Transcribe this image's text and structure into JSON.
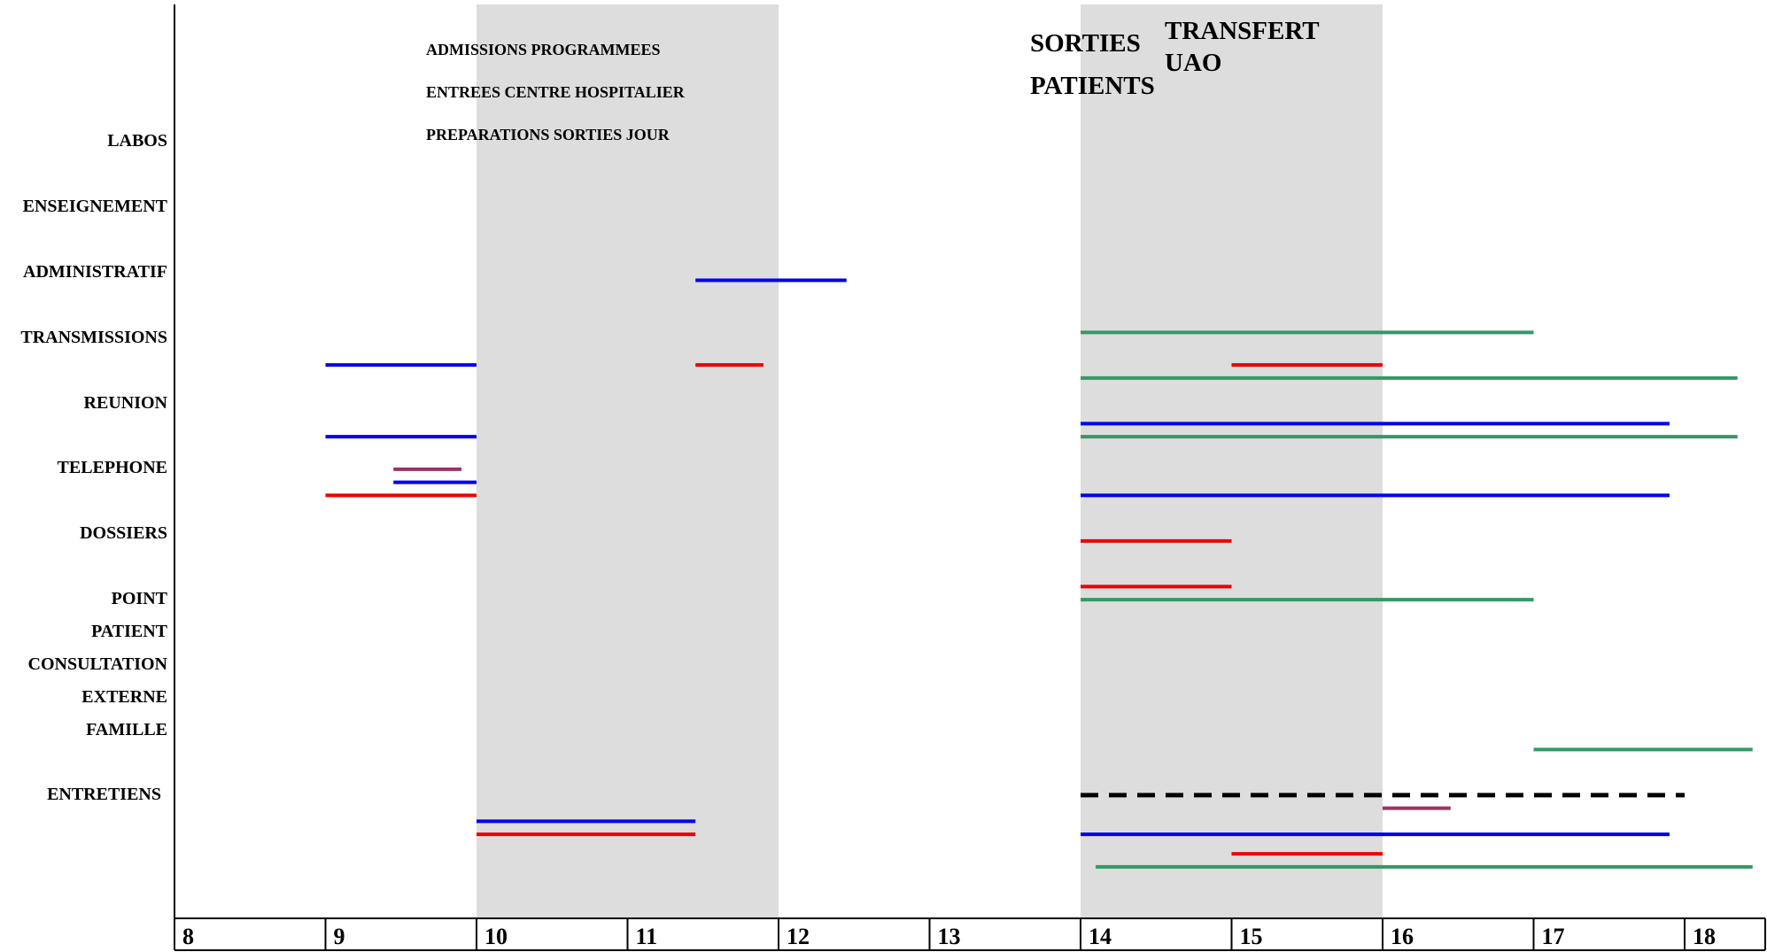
{
  "chart_data": {
    "type": "timeline",
    "x_ticks": [
      "8",
      "9",
      "10",
      "11",
      "12",
      "13",
      "14",
      "15",
      "16",
      "17",
      "18"
    ],
    "xlim": [
      8,
      19
    ],
    "shaded_periods": [
      [
        10,
        12
      ],
      [
        14,
        16
      ]
    ],
    "category_labels": [
      "LABOS",
      "ENSEIGNEMENT",
      "ADMINISTRATIF",
      "TRANSMISSIONS",
      "REUNION",
      "TELEPHONE",
      "DOSSIERS",
      "POINT",
      "PATIENT",
      "CONSULTATION",
      "EXTERNE",
      "FAMILLE",
      "ENTRETIENS"
    ],
    "annotations": [
      {
        "text": "ADMISSIONS PROGRAMMEES",
        "size": "small"
      },
      {
        "text": "ENTREES CENTRE HOSPITALIER",
        "size": "small"
      },
      {
        "text": "PREPARATIONS SORTIES JOUR",
        "size": "small"
      },
      {
        "text": "SORTIES",
        "size": "big"
      },
      {
        "text": "PATIENTS",
        "size": "big"
      },
      {
        "text": "TRANSFERT",
        "size": "big"
      },
      {
        "text": "UAO",
        "size": "big"
      }
    ],
    "colors": {
      "blue": "#0000ee",
      "red": "#ee0000",
      "green": "#339966",
      "purple": "#993366",
      "black": "#000000",
      "shade": "#dddddd"
    },
    "segments": [
      {
        "color": "blue",
        "start": 11.45,
        "end": 12.45,
        "level": 0.43
      },
      {
        "color": "green",
        "start": 14.0,
        "end": 17.0,
        "level": 0.51
      },
      {
        "color": "blue",
        "start": 9.0,
        "end": 10.0,
        "level": 0.56
      },
      {
        "color": "red",
        "start": 11.45,
        "end": 11.9,
        "level": 0.56
      },
      {
        "color": "red",
        "start": 15.0,
        "end": 16.0,
        "level": 0.56
      },
      {
        "color": "green",
        "start": 14.0,
        "end": 18.35,
        "level": 0.58
      },
      {
        "color": "blue",
        "start": 14.0,
        "end": 17.9,
        "level": 0.65
      },
      {
        "color": "blue",
        "start": 9.0,
        "end": 10.0,
        "level": 0.67
      },
      {
        "color": "green",
        "start": 14.0,
        "end": 18.35,
        "level": 0.67
      },
      {
        "color": "purple",
        "start": 9.45,
        "end": 9.9,
        "level": 0.72
      },
      {
        "color": "blue",
        "start": 9.45,
        "end": 10.0,
        "level": 0.74
      },
      {
        "color": "red",
        "start": 9.0,
        "end": 10.0,
        "level": 0.76
      },
      {
        "color": "blue",
        "start": 14.0,
        "end": 17.9,
        "level": 0.76
      },
      {
        "color": "red",
        "start": 14.0,
        "end": 15.0,
        "level": 0.83
      },
      {
        "color": "red",
        "start": 14.0,
        "end": 15.0,
        "level": 0.9
      },
      {
        "color": "green",
        "start": 14.0,
        "end": 17.0,
        "level": 0.92
      },
      {
        "color": "green",
        "start": 17.0,
        "end": 18.45,
        "level": 1.15
      },
      {
        "color": "black",
        "start": 14.0,
        "end": 18.0,
        "level": 1.22,
        "dashed": true
      },
      {
        "color": "purple",
        "start": 16.0,
        "end": 16.45,
        "level": 1.24
      },
      {
        "color": "blue",
        "start": 10.0,
        "end": 11.45,
        "level": 1.26
      },
      {
        "color": "blue",
        "start": 14.0,
        "end": 17.9,
        "level": 1.28
      },
      {
        "color": "red",
        "start": 10.0,
        "end": 11.45,
        "level": 1.28
      },
      {
        "color": "red",
        "start": 15.0,
        "end": 16.0,
        "level": 1.31
      },
      {
        "color": "green",
        "start": 14.1,
        "end": 18.45,
        "level": 1.33
      }
    ]
  }
}
